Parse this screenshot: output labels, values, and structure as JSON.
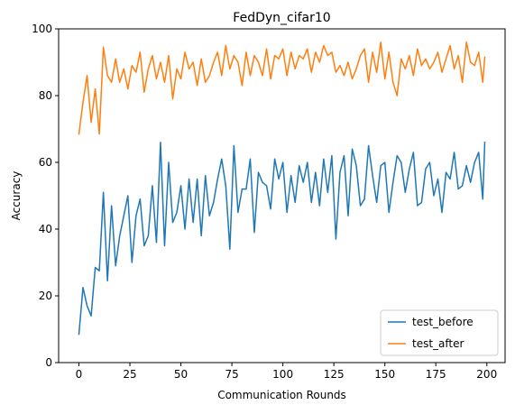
{
  "chart_data": {
    "type": "line",
    "title": "FedDyn_cifar10",
    "xlabel": "Communication Rounds",
    "ylabel": "Accuracy",
    "xlim": [
      -9.95,
      208.95
    ],
    "ylim": [
      0,
      100
    ],
    "xticks": [
      0,
      25,
      50,
      75,
      100,
      125,
      150,
      175,
      200
    ],
    "yticks": [
      0,
      20,
      40,
      60,
      80,
      100
    ],
    "grid": false,
    "legend_position": "bottom-right",
    "series": [
      {
        "name": "test_before",
        "color": "#1f77b4",
        "x": [
          0,
          2,
          4,
          6,
          8,
          10,
          12,
          14,
          16,
          18,
          20,
          22,
          24,
          26,
          28,
          30,
          32,
          34,
          36,
          38,
          40,
          42,
          44,
          46,
          48,
          50,
          52,
          54,
          56,
          58,
          60,
          62,
          64,
          66,
          68,
          70,
          72,
          74,
          76,
          78,
          80,
          82,
          84,
          86,
          88,
          90,
          92,
          94,
          96,
          98,
          100,
          102,
          104,
          106,
          108,
          110,
          112,
          114,
          116,
          118,
          120,
          122,
          124,
          126,
          128,
          130,
          132,
          134,
          136,
          138,
          140,
          142,
          144,
          146,
          148,
          150,
          152,
          154,
          156,
          158,
          160,
          162,
          164,
          166,
          168,
          170,
          172,
          174,
          176,
          178,
          180,
          182,
          184,
          186,
          188,
          190,
          192,
          194,
          196,
          198,
          199
        ],
        "values": [
          8.5,
          22.5,
          17,
          14,
          28.5,
          27.5,
          51,
          24.5,
          47,
          29,
          38,
          44,
          50,
          30,
          44,
          49,
          35,
          38,
          53,
          36,
          66,
          35,
          60,
          42,
          45,
          53,
          40,
          55,
          42,
          55,
          38,
          56,
          44,
          48,
          55,
          61,
          53,
          34,
          65,
          45,
          52,
          52,
          61,
          39,
          57,
          54,
          53,
          46,
          61,
          55,
          60,
          45,
          56,
          48,
          59,
          54,
          60,
          48,
          57,
          47,
          61,
          51,
          62,
          37,
          57,
          62,
          44,
          64,
          59,
          47,
          49,
          65,
          56,
          48,
          59,
          60,
          45,
          54,
          62,
          60,
          51,
          58,
          63,
          47,
          48,
          58,
          60,
          50,
          55,
          45,
          57,
          55,
          63,
          52,
          53,
          59,
          54,
          60,
          63,
          49,
          66
        ]
      },
      {
        "name": "test_after",
        "color": "#ff7f0e",
        "x": [
          0,
          2,
          4,
          6,
          8,
          10,
          12,
          14,
          16,
          18,
          20,
          22,
          24,
          26,
          28,
          30,
          32,
          34,
          36,
          38,
          40,
          42,
          44,
          46,
          48,
          50,
          52,
          54,
          56,
          58,
          60,
          62,
          64,
          66,
          68,
          70,
          72,
          74,
          76,
          78,
          80,
          82,
          84,
          86,
          88,
          90,
          92,
          94,
          96,
          98,
          100,
          102,
          104,
          106,
          108,
          110,
          112,
          114,
          116,
          118,
          120,
          122,
          124,
          126,
          128,
          130,
          132,
          134,
          136,
          138,
          140,
          142,
          144,
          146,
          148,
          150,
          152,
          154,
          156,
          158,
          160,
          162,
          164,
          166,
          168,
          170,
          172,
          174,
          176,
          178,
          180,
          182,
          184,
          186,
          188,
          190,
          192,
          194,
          196,
          198,
          199
        ],
        "values": [
          68.5,
          78,
          86,
          72,
          82,
          68.5,
          94.5,
          86,
          84,
          91,
          84,
          88,
          82,
          89,
          87,
          93,
          81,
          88,
          92,
          85,
          90,
          84,
          92,
          79,
          88,
          85,
          93,
          88,
          90,
          83,
          91,
          84,
          86,
          90,
          93,
          86,
          95,
          88,
          92,
          90,
          83,
          93,
          86,
          92,
          90,
          86,
          94,
          85,
          92,
          91,
          94,
          86,
          93,
          88,
          92,
          91,
          94,
          87,
          93,
          90,
          95,
          92,
          93,
          87,
          89,
          86,
          90,
          85,
          88,
          92,
          94,
          84,
          93,
          87,
          96,
          85,
          93,
          84,
          80,
          91,
          88,
          92,
          86,
          94,
          89,
          91,
          88,
          90,
          93,
          87,
          91,
          95,
          88,
          92,
          84,
          96,
          90,
          89,
          93,
          84,
          91.5
        ]
      }
    ]
  }
}
